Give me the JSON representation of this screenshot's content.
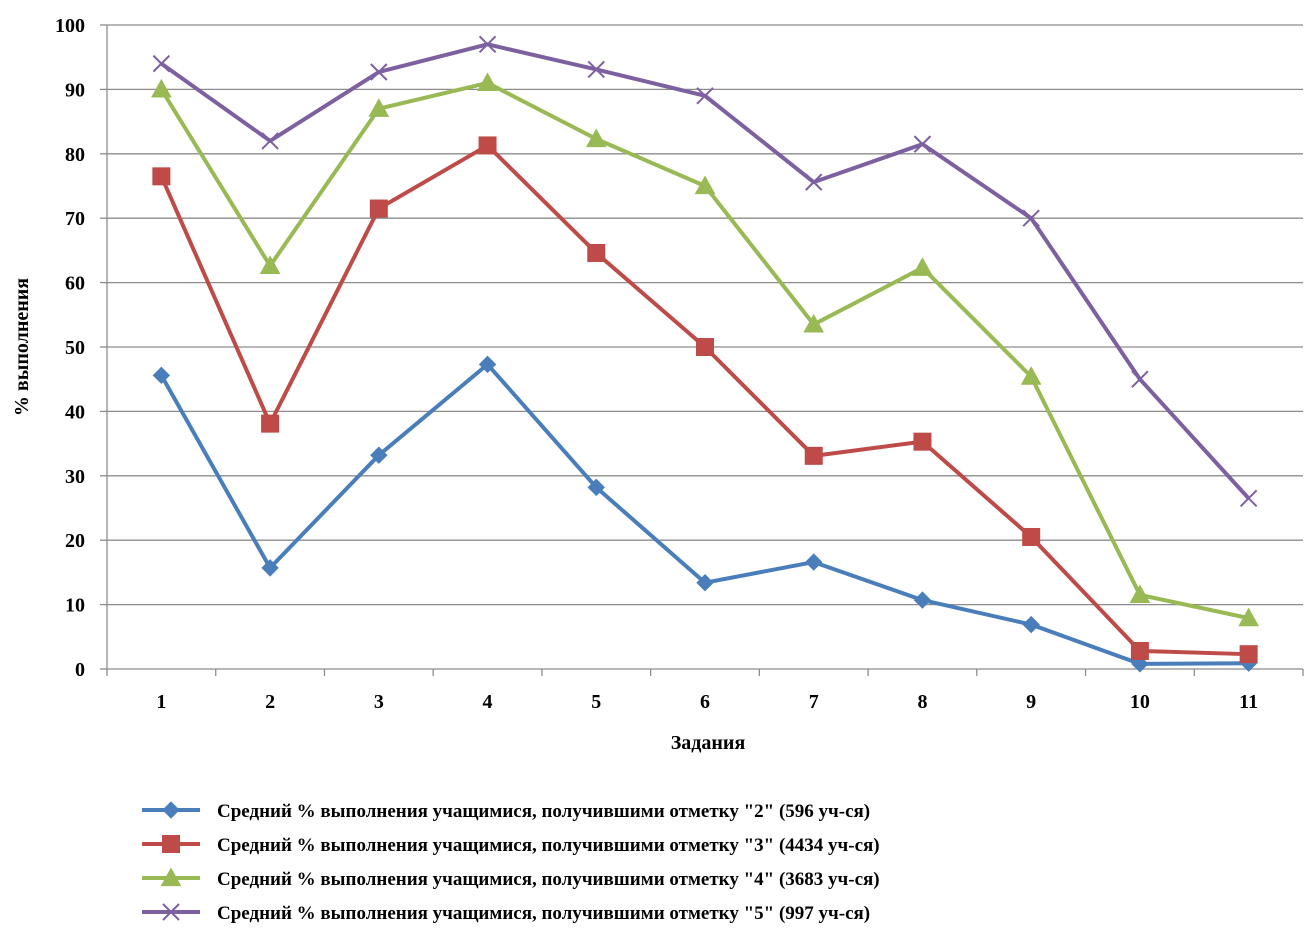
{
  "chart_data": {
    "type": "line",
    "xlabel": "Задания",
    "ylabel": "% выполнения",
    "ylim": [
      0,
      100
    ],
    "y_ticks": [
      "0",
      "10",
      "20",
      "30",
      "40",
      "50",
      "60",
      "70",
      "80",
      "90",
      "100"
    ],
    "categories": [
      "1",
      "2",
      "3",
      "4",
      "5",
      "6",
      "7",
      "8",
      "9",
      "10",
      "11"
    ],
    "grid": true,
    "legend_position": "bottom",
    "series": [
      {
        "name": "Средний % выполнения учащимися, получившими отметку \"2\" (596 уч-ся)",
        "color": "#4a7ebb",
        "marker": "diamond",
        "values": [
          45.6,
          15.7,
          33.2,
          47.3,
          28.2,
          13.4,
          16.6,
          10.7,
          6.9,
          0.8,
          0.9
        ]
      },
      {
        "name": "Средний % выполнения учащимися, получившими отметку \"3\" (4434 уч-ся)",
        "color": "#be4b48",
        "marker": "square",
        "values": [
          76.5,
          38.1,
          71.5,
          81.3,
          64.6,
          50.0,
          33.1,
          35.3,
          20.5,
          2.8,
          2.3
        ]
      },
      {
        "name": "Средний % выполнения учащимися, получившими отметку \"4\" (3683 уч-ся)",
        "color": "#98b954",
        "marker": "triangle",
        "values": [
          90.0,
          62.6,
          87.0,
          91.0,
          82.3,
          75.0,
          53.5,
          62.3,
          45.4,
          11.5,
          7.9
        ]
      },
      {
        "name": "Средний % выполнения учащимися, получившими отметку \"5\" (997 уч-ся)",
        "color": "#7d60a0",
        "marker": "x",
        "values": [
          94.0,
          82.0,
          92.7,
          97.0,
          93.1,
          89.0,
          75.6,
          81.5,
          70.0,
          45.0,
          26.5
        ]
      }
    ]
  }
}
